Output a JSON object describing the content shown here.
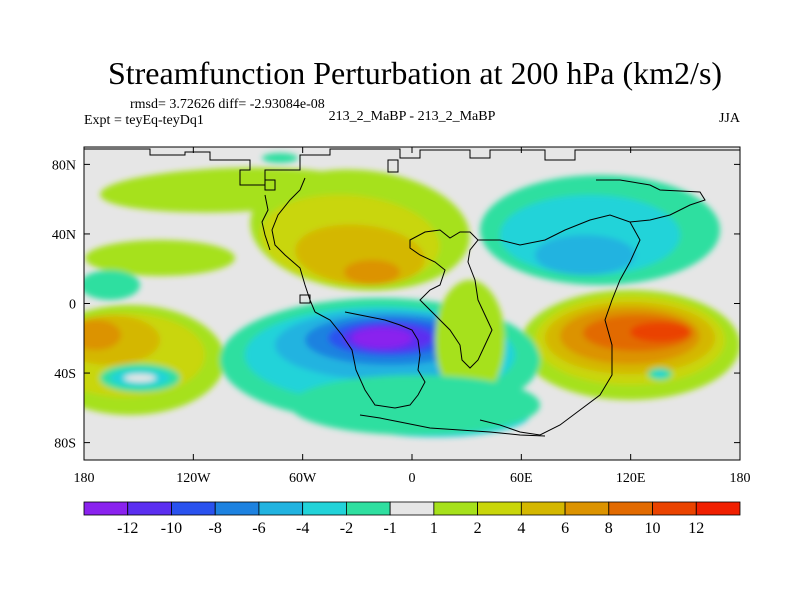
{
  "title": "Streamfunction Perturbation at 200 hPa (km2/s)",
  "stats": "rmsd= 3.72626 diff= -2.93084e-08",
  "experiment": "Expt = teyEq-teyDq1",
  "case": "213_2_MaBP - 213_2_MaBP",
  "season": "JJA",
  "colors": {
    "lev_neg14": "#8a22ee",
    "lev_neg12": "#5b2ef0",
    "lev_neg10": "#2a52ee",
    "lev_neg8": "#1d82e0",
    "lev_neg6": "#21b3e0",
    "lev_neg4": "#22d3d9",
    "lev_neg2": "#2fdfa0",
    "lev_zero": "#e6e6e6",
    "lev_pos1": "#a6e11b",
    "lev_pos2": "#c9d60a",
    "lev_pos4": "#d4b700",
    "lev_pos6": "#dc9300",
    "lev_pos8": "#e26a00",
    "lev_pos10": "#ea4300",
    "lev_pos12": "#f01f00"
  },
  "chart_data": {
    "type": "contour-map",
    "projection": "cylindrical-equidistant",
    "lon_range": [
      -180,
      180
    ],
    "lat_range": [
      -90,
      90
    ],
    "lon_ticks": [
      "180",
      "120W",
      "60W",
      "0",
      "60E",
      "120E",
      "180"
    ],
    "lat_ticks": [
      "80N",
      "40N",
      "0",
      "40S",
      "80S"
    ],
    "colorbar_labels": [
      "-12",
      "-10",
      "-8",
      "-6",
      "-4",
      "-2",
      "-1",
      "1",
      "2",
      "4",
      "6",
      "8",
      "10",
      "12"
    ],
    "features": [
      {
        "name": "min-south-atlantic",
        "lon": -20,
        "lat": -25,
        "value": -13
      },
      {
        "name": "max-south-indian",
        "lon": 120,
        "lat": -20,
        "value": 10
      },
      {
        "name": "max-north-atlantic",
        "lon": -25,
        "lat": 12,
        "value": 6
      },
      {
        "name": "min-asia",
        "lon": 85,
        "lat": 25,
        "value": -6
      },
      {
        "name": "max-south-pacific",
        "lon": -165,
        "lat": -25,
        "value": 6
      }
    ]
  }
}
